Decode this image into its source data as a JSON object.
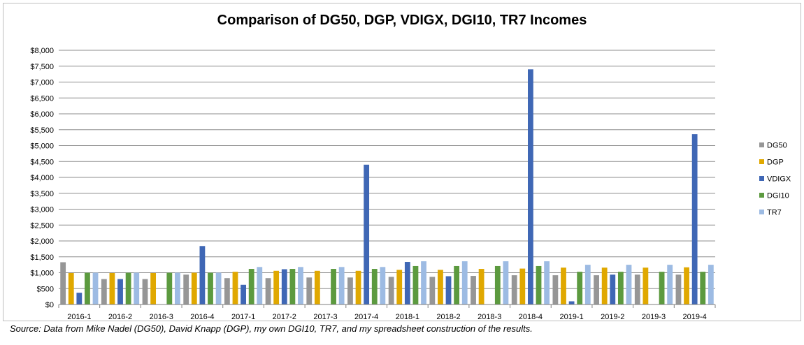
{
  "chart_data": {
    "type": "bar",
    "title": "Comparison of DG50, DGP, VDIGX, DGI10, TR7 Incomes",
    "xlabel": "",
    "ylabel": "",
    "ylim": [
      0,
      8000
    ],
    "y_ticks": [
      "$0",
      "$500",
      "$1,000",
      "$1,500",
      "$2,000",
      "$2,500",
      "$3,000",
      "$3,500",
      "$4,000",
      "$4,500",
      "$5,000",
      "$5,500",
      "$6,000",
      "$6,500",
      "$7,000",
      "$7,500",
      "$8,000"
    ],
    "grid": true,
    "legend_position": "right",
    "categories": [
      "2016-1",
      "2016-2",
      "2016-3",
      "2016-4",
      "2017-1",
      "2017-2",
      "2017-3",
      "2017-4",
      "2018-1",
      "2018-2",
      "2018-3",
      "2018-4",
      "2019-1",
      "2019-2",
      "2019-3",
      "2019-4"
    ],
    "series": [
      {
        "name": "DG50",
        "color": "#969696",
        "values": [
          1330,
          800,
          800,
          940,
          830,
          830,
          850,
          850,
          870,
          870,
          900,
          920,
          920,
          920,
          940,
          940
        ]
      },
      {
        "name": "DGP",
        "color": "#e0a800",
        "values": [
          990,
          990,
          990,
          1000,
          1030,
          1060,
          1060,
          1060,
          1090,
          1090,
          1120,
          1130,
          1160,
          1160,
          1160,
          1170
        ]
      },
      {
        "name": "VDIGX",
        "color": "#3f67b5",
        "values": [
          370,
          800,
          0,
          1840,
          620,
          1110,
          0,
          4400,
          1340,
          890,
          0,
          7400,
          100,
          940,
          0,
          5360
        ]
      },
      {
        "name": "DGI10",
        "color": "#5c9a3f",
        "values": [
          1000,
          1000,
          1000,
          1000,
          1120,
          1120,
          1120,
          1120,
          1210,
          1210,
          1210,
          1210,
          1030,
          1030,
          1030,
          1030
        ]
      },
      {
        "name": "TR7",
        "color": "#9dbbe3",
        "values": [
          1000,
          1000,
          1000,
          1000,
          1180,
          1180,
          1180,
          1180,
          1360,
          1360,
          1360,
          1360,
          1250,
          1250,
          1250,
          1250
        ]
      }
    ]
  },
  "source_note": "Source: Data from Mike Nadel (DG50), David Knapp (DGP), my own DGI10, TR7, and my spreadsheet construction of the results."
}
